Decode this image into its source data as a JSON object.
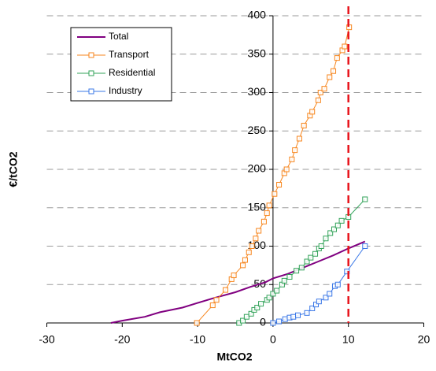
{
  "chart_data": {
    "type": "line",
    "x_label": "MtCO2",
    "y_label": "€/tCO2",
    "xlim": [
      -30,
      20
    ],
    "xticks": [
      -30,
      -20,
      -10,
      0,
      10,
      20
    ],
    "ylim": [
      0,
      400
    ],
    "yticks": [
      0,
      50,
      100,
      150,
      200,
      250,
      300,
      350,
      400
    ],
    "grid": true,
    "legend": "upper left",
    "reference_line": {
      "x": 10,
      "color": "#e8131b"
    },
    "series": [
      {
        "name": "Total",
        "color": "#800080",
        "marker": "none",
        "x": [
          -21.5,
          -20,
          -17,
          -15,
          -12,
          -10,
          -8,
          -5,
          -3,
          -1,
          0,
          2,
          4,
          6,
          8,
          10,
          12.2
        ],
        "values": [
          0,
          3,
          8,
          14,
          20,
          26,
          32,
          40,
          47,
          53,
          58,
          64,
          72,
          80,
          88,
          97,
          106
        ]
      },
      {
        "name": "Transport",
        "color": "#f7861e",
        "marker": "square",
        "x": [
          -10.1,
          -8.0,
          -7.5,
          -6.3,
          -5.5,
          -5.2,
          -4.0,
          -3.7,
          -3.2,
          -2.8,
          -2.3,
          -1.9,
          -1.2,
          -0.8,
          -0.5,
          0.2,
          0.8,
          1.5,
          1.8,
          2.5,
          2.9,
          3.5,
          4.1,
          4.9,
          5.2,
          6.0,
          6.3,
          6.8,
          7.5,
          8.0,
          8.5,
          9.2,
          9.5,
          10.1
        ],
        "values": [
          0,
          23,
          30,
          43,
          57,
          62,
          75,
          82,
          92,
          100,
          110,
          120,
          132,
          143,
          153,
          168,
          180,
          195,
          200,
          213,
          225,
          240,
          257,
          270,
          275,
          290,
          300,
          305,
          320,
          328,
          345,
          355,
          360,
          385
        ]
      },
      {
        "name": "Residential",
        "color": "#33a35a",
        "marker": "square",
        "x": [
          -4.5,
          -4.0,
          -3.5,
          -2.9,
          -2.5,
          -2.1,
          -1.6,
          -0.8,
          -0.5,
          0,
          0.5,
          1.2,
          1.5,
          2.2,
          3.1,
          3.8,
          4.5,
          5.0,
          5.6,
          6.1,
          6.4,
          7.0,
          7.6,
          8.1,
          8.6,
          9.1,
          10.0,
          12.2
        ],
        "values": [
          0,
          3,
          8,
          12,
          17,
          20,
          25,
          30,
          33,
          38,
          42,
          50,
          55,
          60,
          68,
          72,
          80,
          85,
          90,
          97,
          100,
          110,
          117,
          122,
          127,
          133,
          138,
          161
        ]
      },
      {
        "name": "Industry",
        "color": "#3b78e7",
        "marker": "square",
        "x": [
          0,
          0.8,
          1.6,
          2.2,
          2.7,
          3.3,
          4.5,
          5.2,
          5.7,
          6.1,
          7.0,
          7.5,
          8.2,
          8.6,
          9.8,
          12.2
        ],
        "values": [
          0,
          2,
          5,
          7,
          8,
          10,
          13,
          19,
          24,
          28,
          33,
          38,
          48,
          50,
          67,
          100
        ]
      }
    ]
  }
}
